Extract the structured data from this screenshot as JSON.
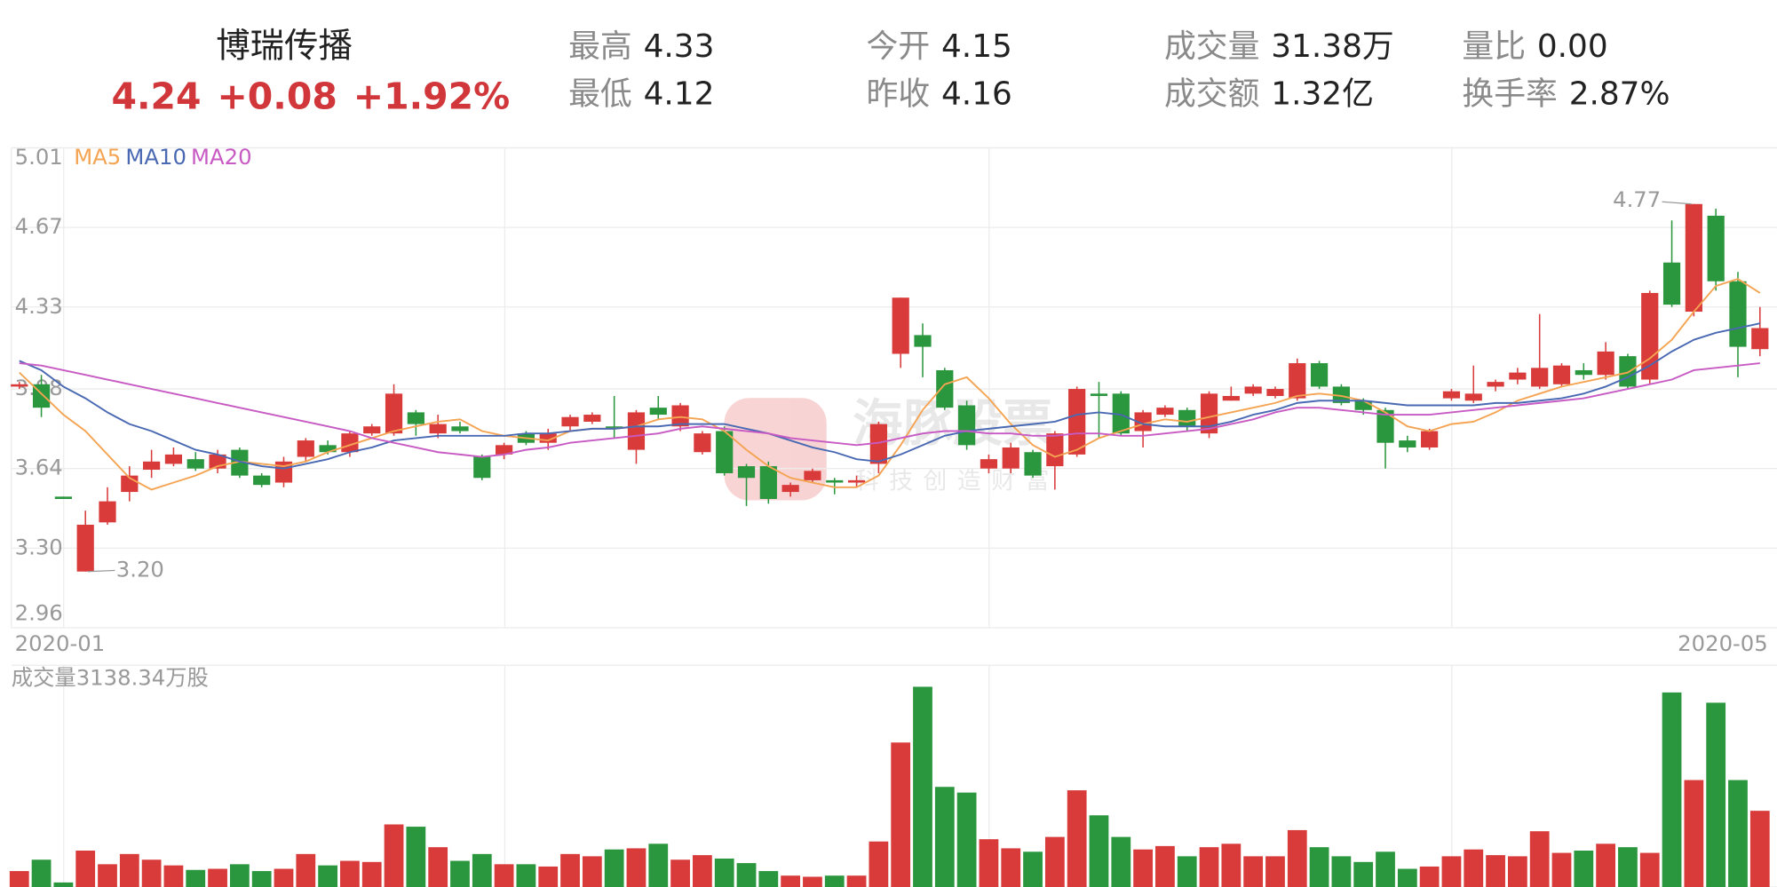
{
  "header": {
    "name": "博瑞传播",
    "price": "4.24",
    "change": "+0.08",
    "change_pct": "+1.92%",
    "stats": [
      {
        "label": "最高",
        "value": "4.33"
      },
      {
        "label": "今开",
        "value": "4.15"
      },
      {
        "label": "成交量",
        "value": "31.38万"
      },
      {
        "label": "量比",
        "value": "0.00"
      },
      {
        "label": "最低",
        "value": "4.12"
      },
      {
        "label": "昨收",
        "value": "4.16"
      },
      {
        "label": "成交额",
        "value": "1.32亿"
      },
      {
        "label": "换手率",
        "value": "2.87%"
      }
    ],
    "watermark": {
      "name": "海豚股票",
      "slogan": "科技创造财富"
    }
  },
  "chart_data": [
    {
      "type": "candlestick",
      "categories": [
        "2020-01",
        null,
        null,
        null,
        null,
        null,
        null,
        null,
        null,
        null,
        null,
        null,
        null,
        null,
        null,
        null,
        null,
        null,
        null,
        null,
        null,
        null,
        null,
        null,
        null,
        null,
        null,
        null,
        null,
        null,
        null,
        null,
        null,
        null,
        null,
        null,
        null,
        null,
        null,
        null,
        null,
        null,
        null,
        null,
        null,
        null,
        null,
        null,
        null,
        null,
        null,
        null,
        null,
        null,
        null,
        null,
        null,
        null,
        null,
        null,
        null,
        null,
        null,
        null,
        null,
        null,
        null,
        null,
        null,
        null,
        null,
        null,
        null,
        null,
        null,
        null,
        null,
        null,
        null,
        "2020-05"
      ],
      "open": [
        3.99,
        4.0,
        3.52,
        3.2,
        3.41,
        3.54,
        3.635,
        3.66,
        3.68,
        3.64,
        3.72,
        3.61,
        3.58,
        3.69,
        3.74,
        3.71,
        3.79,
        3.79,
        3.88,
        3.79,
        3.82,
        3.69,
        3.7,
        3.79,
        3.75,
        3.82,
        3.84,
        3.82,
        3.72,
        3.9,
        3.82,
        3.71,
        3.8,
        3.65,
        3.65,
        3.54,
        3.59,
        3.59,
        3.58,
        3.66,
        4.13,
        4.21,
        4.06,
        3.91,
        3.64,
        3.64,
        3.71,
        3.65,
        3.7,
        3.96,
        3.96,
        3.8,
        3.87,
        3.89,
        3.79,
        3.93,
        3.96,
        3.95,
        3.94,
        4.09,
        3.99,
        3.93,
        3.89,
        3.76,
        3.73,
        3.94,
        3.93,
        3.99,
        4.02,
        3.99,
        4.0,
        4.06,
        4.04,
        4.12,
        4.02,
        4.52,
        4.31,
        4.72,
        4.44,
        4.15
      ],
      "high": [
        4.01,
        4.04,
        3.52,
        3.46,
        3.56,
        3.65,
        3.72,
        3.73,
        3.71,
        3.72,
        3.73,
        3.62,
        3.69,
        3.77,
        3.76,
        3.8,
        3.83,
        4.0,
        3.89,
        3.87,
        3.84,
        3.7,
        3.75,
        3.8,
        3.81,
        3.87,
        3.88,
        3.95,
        3.89,
        3.95,
        3.92,
        3.8,
        3.82,
        3.66,
        3.67,
        3.58,
        3.64,
        3.6,
        3.61,
        3.84,
        4.37,
        4.26,
        4.07,
        3.93,
        3.7,
        3.75,
        3.72,
        3.8,
        3.99,
        4.01,
        3.97,
        3.89,
        3.91,
        3.9,
        3.97,
        3.99,
        4.0,
        3.99,
        4.11,
        4.1,
        4.0,
        3.94,
        3.9,
        3.78,
        3.81,
        3.98,
        4.08,
        4.02,
        4.07,
        4.3,
        4.09,
        4.09,
        4.18,
        4.13,
        4.4,
        4.7,
        4.77,
        4.75,
        4.48,
        4.33
      ],
      "low": [
        3.98,
        3.86,
        3.51,
        3.2,
        3.4,
        3.5,
        3.6,
        3.65,
        3.63,
        3.62,
        3.6,
        3.56,
        3.56,
        3.67,
        3.7,
        3.69,
        3.78,
        3.78,
        3.78,
        3.77,
        3.79,
        3.59,
        3.68,
        3.74,
        3.72,
        3.8,
        3.83,
        3.77,
        3.66,
        3.85,
        3.8,
        3.7,
        3.61,
        3.48,
        3.49,
        3.52,
        3.58,
        3.53,
        3.56,
        3.62,
        4.07,
        4.03,
        3.89,
        3.72,
        3.62,
        3.62,
        3.6,
        3.55,
        3.69,
        3.77,
        3.78,
        3.73,
        3.86,
        3.8,
        3.77,
        3.93,
        3.95,
        3.94,
        3.93,
        3.98,
        3.91,
        3.87,
        3.64,
        3.71,
        3.72,
        3.93,
        3.92,
        3.97,
        4.0,
        3.98,
        3.99,
        4.02,
        4.02,
        3.98,
        4.0,
        4.33,
        4.29,
        4.4,
        4.03,
        4.12
      ],
      "close": [
        4.0,
        3.9,
        3.51,
        3.4,
        3.5,
        3.61,
        3.67,
        3.7,
        3.64,
        3.7,
        3.61,
        3.57,
        3.67,
        3.76,
        3.71,
        3.79,
        3.82,
        3.96,
        3.83,
        3.83,
        3.8,
        3.6,
        3.74,
        3.75,
        3.79,
        3.86,
        3.87,
        3.81,
        3.88,
        3.87,
        3.91,
        3.79,
        3.62,
        3.6,
        3.51,
        3.57,
        3.63,
        3.58,
        3.59,
        3.83,
        4.37,
        4.16,
        3.9,
        3.74,
        3.68,
        3.73,
        3.61,
        3.79,
        3.98,
        3.95,
        3.79,
        3.88,
        3.9,
        3.82,
        3.96,
        3.95,
        3.99,
        3.98,
        4.09,
        3.99,
        3.92,
        3.89,
        3.75,
        3.73,
        3.8,
        3.97,
        3.96,
        4.01,
        4.05,
        4.07,
        4.08,
        4.04,
        4.14,
        3.99,
        4.39,
        4.34,
        4.77,
        4.44,
        4.16,
        4.24
      ],
      "up_color": "#d93a3a",
      "down_color": "#2a963d",
      "series": [
        {
          "name": "MA5",
          "color": "#f4a452",
          "values": [
            4.05,
            3.96,
            3.87,
            3.8,
            3.7,
            3.6,
            3.55,
            3.58,
            3.61,
            3.65,
            3.67,
            3.66,
            3.65,
            3.67,
            3.71,
            3.74,
            3.77,
            3.8,
            3.82,
            3.84,
            3.85,
            3.8,
            3.78,
            3.77,
            3.76,
            3.8,
            3.81,
            3.81,
            3.82,
            3.85,
            3.86,
            3.85,
            3.8,
            3.72,
            3.65,
            3.6,
            3.58,
            3.56,
            3.56,
            3.61,
            3.74,
            3.89,
            4.0,
            4.03,
            3.94,
            3.83,
            3.74,
            3.69,
            3.72,
            3.77,
            3.8,
            3.83,
            3.85,
            3.84,
            3.86,
            3.88,
            3.9,
            3.92,
            3.95,
            3.96,
            3.95,
            3.93,
            3.88,
            3.82,
            3.8,
            3.83,
            3.84,
            3.88,
            3.93,
            3.96,
            3.99,
            4.01,
            4.03,
            4.05,
            4.11,
            4.19,
            4.31,
            4.42,
            4.45,
            4.39
          ]
        },
        {
          "name": "MA10",
          "color": "#4a69b3",
          "values": [
            4.1,
            4.06,
            3.99,
            3.94,
            3.88,
            3.83,
            3.8,
            3.76,
            3.72,
            3.7,
            3.67,
            3.65,
            3.64,
            3.66,
            3.68,
            3.71,
            3.73,
            3.76,
            3.77,
            3.78,
            3.78,
            3.78,
            3.78,
            3.79,
            3.79,
            3.8,
            3.81,
            3.81,
            3.82,
            3.82,
            3.83,
            3.83,
            3.83,
            3.81,
            3.79,
            3.76,
            3.73,
            3.71,
            3.68,
            3.67,
            3.7,
            3.74,
            3.78,
            3.8,
            3.81,
            3.82,
            3.83,
            3.84,
            3.87,
            3.88,
            3.87,
            3.83,
            3.82,
            3.82,
            3.82,
            3.84,
            3.87,
            3.89,
            3.92,
            3.93,
            3.93,
            3.93,
            3.92,
            3.91,
            3.91,
            3.91,
            3.91,
            3.92,
            3.92,
            3.93,
            3.94,
            3.96,
            3.99,
            4.03,
            4.08,
            4.14,
            4.19,
            4.22,
            4.24,
            4.26
          ]
        },
        {
          "name": "MA20",
          "color": "#c85ac4",
          "values": [
            4.09,
            4.08,
            4.06,
            4.04,
            4.02,
            4.0,
            3.98,
            3.96,
            3.94,
            3.92,
            3.9,
            3.88,
            3.86,
            3.84,
            3.82,
            3.8,
            3.77,
            3.75,
            3.73,
            3.71,
            3.7,
            3.69,
            3.7,
            3.72,
            3.73,
            3.75,
            3.76,
            3.77,
            3.78,
            3.79,
            3.81,
            3.82,
            3.81,
            3.8,
            3.79,
            3.77,
            3.76,
            3.75,
            3.74,
            3.75,
            3.77,
            3.79,
            3.8,
            3.8,
            3.79,
            3.79,
            3.78,
            3.78,
            3.79,
            3.79,
            3.78,
            3.78,
            3.79,
            3.8,
            3.81,
            3.83,
            3.85,
            3.88,
            3.9,
            3.9,
            3.89,
            3.88,
            3.87,
            3.87,
            3.87,
            3.88,
            3.89,
            3.9,
            3.91,
            3.92,
            3.93,
            3.94,
            3.96,
            3.98,
            4.0,
            4.02,
            4.06,
            4.07,
            4.08,
            4.09
          ]
        }
      ],
      "extremes": {
        "high": 4.77,
        "low": {
          "value": 3.2,
          "label": "3.20"
        }
      },
      "ylim": [
        2.96,
        5.01
      ],
      "yticks": [
        5.01,
        4.67,
        4.33,
        3.98,
        3.64,
        {
          "value": 3.3,
          "label": "3.30"
        },
        2.96
      ],
      "grid": true
    },
    {
      "type": "bar",
      "title": "成交量3138.34万股",
      "values": [
        656,
        1124,
        187,
        1499,
        937,
        1358,
        1124,
        890,
        703,
        749,
        937,
        656,
        749,
        1358,
        890,
        1077,
        1030,
        2576,
        2483,
        1639,
        1077,
        1358,
        937,
        937,
        843,
        1358,
        1265,
        1546,
        1593,
        1780,
        1124,
        1312,
        1171,
        984,
        656,
        468,
        422,
        468,
        468,
        1874,
        5949,
        8244,
        4122,
        3888,
        1967,
        1593,
        1452,
        2061,
        3981,
        2951,
        2061,
        1546,
        1686,
        1265,
        1639,
        1780,
        1265,
        1265,
        2342,
        1639,
        1265,
        1030,
        1452,
        749,
        843,
        1265,
        1546,
        1312,
        1265,
        2295,
        1405,
        1499,
        1780,
        1639,
        1405,
        8010,
        4403,
        7588,
        4403,
        3138.34
      ],
      "ylim": [
        0,
        9130
      ]
    }
  ]
}
